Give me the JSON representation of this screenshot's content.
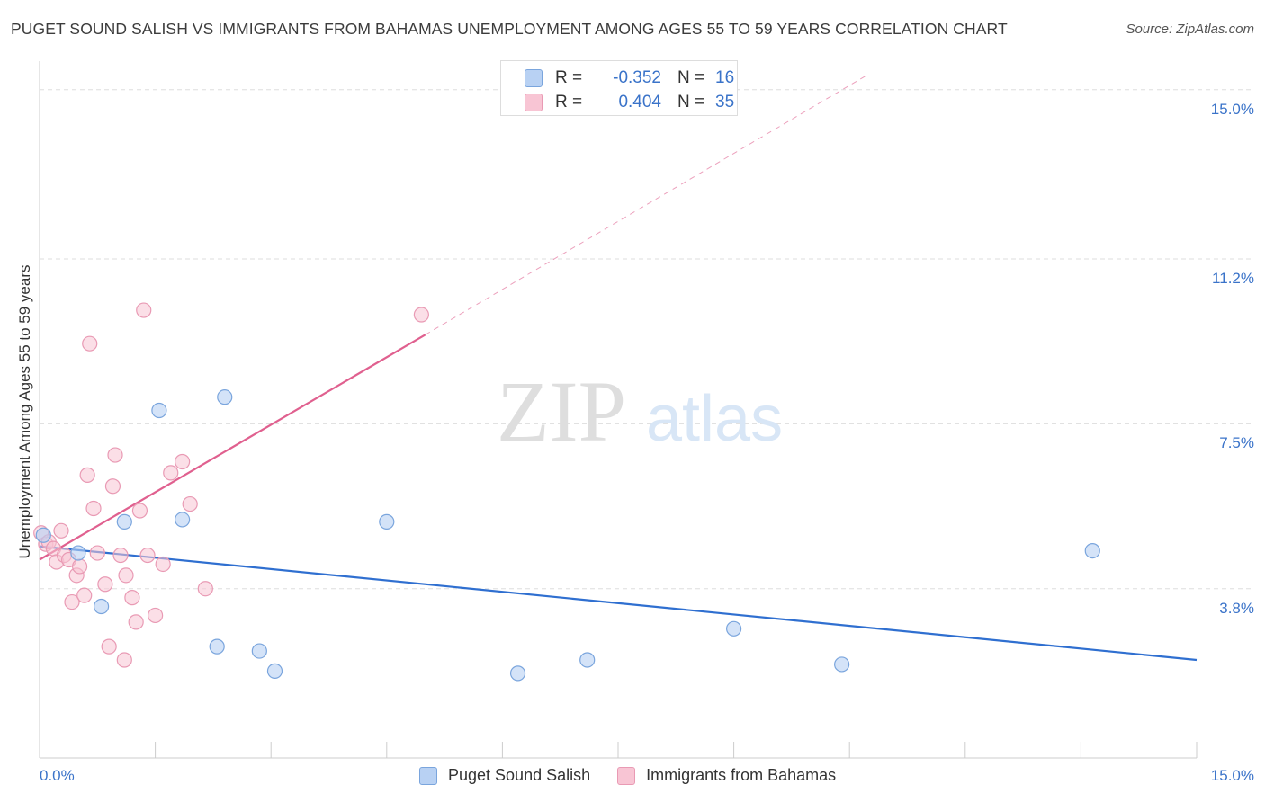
{
  "title": "PUGET SOUND SALISH VS IMMIGRANTS FROM BAHAMAS UNEMPLOYMENT AMONG AGES 55 TO 59 YEARS CORRELATION CHART",
  "source": "Source: ZipAtlas.com",
  "watermark": {
    "zip": "ZIP",
    "atlas": "atlas"
  },
  "legend_top": {
    "rows": [
      {
        "r_label": "R =",
        "r_value": "-0.352",
        "n_label": "N =",
        "n_value": "16"
      },
      {
        "r_label": "R =",
        "r_value": "0.404",
        "n_label": "N =",
        "n_value": "35"
      }
    ]
  },
  "colors": {
    "blue_fill": "#b8d1f3",
    "blue_stroke": "#7aa5dd",
    "blue_line": "#2f6fd0",
    "pink_fill": "#f8c5d4",
    "pink_stroke": "#e99ab4",
    "pink_line": "#e0608f",
    "grid": "#dddddd",
    "tick_text": "#3a73c9"
  },
  "chart_data": {
    "type": "scatter",
    "title": "PUGET SOUND SALISH VS IMMIGRANTS FROM BAHAMAS UNEMPLOYMENT AMONG AGES 55 TO 59 YEARS CORRELATION CHART",
    "xlabel": "",
    "ylabel": "Unemployment Among Ages 55 to 59 years",
    "xlim": [
      0,
      15
    ],
    "ylim": [
      0,
      15.5
    ],
    "x_tick_labels": [
      "0.0%",
      "15.0%"
    ],
    "y_ticks": [
      3.8,
      7.5,
      11.2,
      15.0
    ],
    "y_tick_labels": [
      "3.8%",
      "7.5%",
      "11.2%",
      "15.0%"
    ],
    "grid": true,
    "legend": "bottom-center",
    "series": [
      {
        "name": "Puget Sound Salish",
        "color": "blue",
        "R": -0.352,
        "N": 16,
        "trend": {
          "x": [
            0,
            15
          ],
          "y": [
            4.75,
            2.2
          ]
        },
        "points": [
          {
            "x": 0.05,
            "y": 5.0
          },
          {
            "x": 0.5,
            "y": 4.6
          },
          {
            "x": 0.8,
            "y": 3.4
          },
          {
            "x": 1.1,
            "y": 5.3
          },
          {
            "x": 1.55,
            "y": 7.8
          },
          {
            "x": 1.85,
            "y": 5.35
          },
          {
            "x": 2.3,
            "y": 2.5
          },
          {
            "x": 2.4,
            "y": 8.1
          },
          {
            "x": 2.85,
            "y": 2.4
          },
          {
            "x": 3.05,
            "y": 1.95
          },
          {
            "x": 4.5,
            "y": 5.3
          },
          {
            "x": 6.2,
            "y": 1.9
          },
          {
            "x": 7.1,
            "y": 2.2
          },
          {
            "x": 9.0,
            "y": 2.9
          },
          {
            "x": 10.4,
            "y": 2.1
          },
          {
            "x": 13.65,
            "y": 4.65
          }
        ]
      },
      {
        "name": "Immigrants from Bahamas",
        "color": "pink",
        "R": 0.404,
        "N": 35,
        "trend": {
          "x": [
            0,
            5.0
          ],
          "y": [
            4.45,
            9.5
          ]
        },
        "trend_ext": {
          "x": [
            5.0,
            10.7
          ],
          "y": [
            9.5,
            15.3
          ]
        },
        "points": [
          {
            "x": 0.02,
            "y": 5.05
          },
          {
            "x": 0.08,
            "y": 4.8
          },
          {
            "x": 0.12,
            "y": 4.85
          },
          {
            "x": 0.18,
            "y": 4.7
          },
          {
            "x": 0.22,
            "y": 4.4
          },
          {
            "x": 0.28,
            "y": 5.1
          },
          {
            "x": 0.32,
            "y": 4.55
          },
          {
            "x": 0.38,
            "y": 4.45
          },
          {
            "x": 0.42,
            "y": 3.5
          },
          {
            "x": 0.48,
            "y": 4.1
          },
          {
            "x": 0.52,
            "y": 4.3
          },
          {
            "x": 0.58,
            "y": 3.65
          },
          {
            "x": 0.62,
            "y": 6.35
          },
          {
            "x": 0.65,
            "y": 9.3
          },
          {
            "x": 0.7,
            "y": 5.6
          },
          {
            "x": 0.75,
            "y": 4.6
          },
          {
            "x": 0.85,
            "y": 3.9
          },
          {
            "x": 0.9,
            "y": 2.5
          },
          {
            "x": 0.95,
            "y": 6.1
          },
          {
            "x": 0.98,
            "y": 6.8
          },
          {
            "x": 1.05,
            "y": 4.55
          },
          {
            "x": 1.1,
            "y": 2.2
          },
          {
            "x": 1.12,
            "y": 4.1
          },
          {
            "x": 1.2,
            "y": 3.6
          },
          {
            "x": 1.25,
            "y": 3.05
          },
          {
            "x": 1.3,
            "y": 5.55
          },
          {
            "x": 1.35,
            "y": 10.05
          },
          {
            "x": 1.4,
            "y": 4.55
          },
          {
            "x": 1.5,
            "y": 3.2
          },
          {
            "x": 1.6,
            "y": 4.35
          },
          {
            "x": 1.7,
            "y": 6.4
          },
          {
            "x": 1.85,
            "y": 6.65
          },
          {
            "x": 1.95,
            "y": 5.7
          },
          {
            "x": 2.15,
            "y": 3.8
          },
          {
            "x": 4.95,
            "y": 9.95
          }
        ]
      }
    ]
  },
  "bottom_legend": [
    {
      "label": "Puget Sound Salish",
      "color": "blue"
    },
    {
      "label": "Immigrants from Bahamas",
      "color": "pink"
    }
  ]
}
